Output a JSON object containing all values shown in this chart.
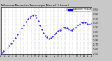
{
  "title": "Milwaukee Barometric Pressure per Minute (24 Hours)",
  "background_color": "#c8c8c8",
  "plot_bg_color": "#ffffff",
  "dot_color": "#0000ff",
  "legend_color": "#0000ff",
  "legend_label": "Barometric Pressure",
  "grid_color": "#aaaaaa",
  "text_color": "#000000",
  "y_min": 29.5,
  "y_max": 30.55,
  "x_min": 0,
  "x_max": 1440,
  "x_ticks": [
    0,
    60,
    120,
    180,
    240,
    300,
    360,
    420,
    480,
    540,
    600,
    660,
    720,
    780,
    840,
    900,
    960,
    1020,
    1080,
    1140,
    1200,
    1260,
    1320,
    1380,
    1440
  ],
  "x_tick_labels": [
    "12",
    "1",
    "2",
    "3",
    "4",
    "5",
    "6",
    "7",
    "8",
    "9",
    "10",
    "11",
    "12",
    "1",
    "2",
    "3",
    "4",
    "5",
    "6",
    "7",
    "8",
    "9",
    "10",
    "11",
    "12"
  ],
  "y_ticks": [
    29.5,
    29.6,
    29.7,
    29.8,
    29.9,
    30.0,
    30.1,
    30.2,
    30.3,
    30.4,
    30.5
  ],
  "y_tick_labels": [
    "29.50",
    "29.60",
    "29.70",
    "29.80",
    "29.90",
    "30.00",
    "30.10",
    "30.20",
    "30.30",
    "30.40",
    "30.50"
  ],
  "data_x": [
    10,
    40,
    70,
    100,
    130,
    160,
    195,
    230,
    265,
    295,
    325,
    360,
    395,
    430,
    455,
    475,
    500,
    520,
    545,
    565,
    590,
    620,
    645,
    670,
    700,
    730,
    760,
    790,
    820,
    850,
    875,
    905,
    935,
    965,
    990,
    1015,
    1045,
    1075,
    1100,
    1125,
    1150,
    1185,
    1215,
    1250,
    1285,
    1310,
    1340,
    1375,
    1405,
    1435
  ],
  "data_y": [
    29.52,
    29.55,
    29.59,
    29.63,
    29.68,
    29.73,
    29.79,
    29.86,
    29.93,
    30.0,
    30.08,
    30.14,
    30.22,
    30.28,
    30.32,
    30.35,
    30.37,
    30.38,
    30.36,
    30.32,
    30.24,
    30.14,
    30.05,
    29.97,
    29.91,
    29.87,
    29.84,
    29.86,
    29.89,
    29.93,
    29.97,
    30.01,
    30.04,
    30.07,
    30.1,
    30.1,
    30.08,
    30.05,
    30.04,
    30.03,
    30.06,
    30.1,
    30.14,
    30.17,
    30.2,
    30.21,
    30.2,
    30.18,
    30.17,
    30.19
  ]
}
